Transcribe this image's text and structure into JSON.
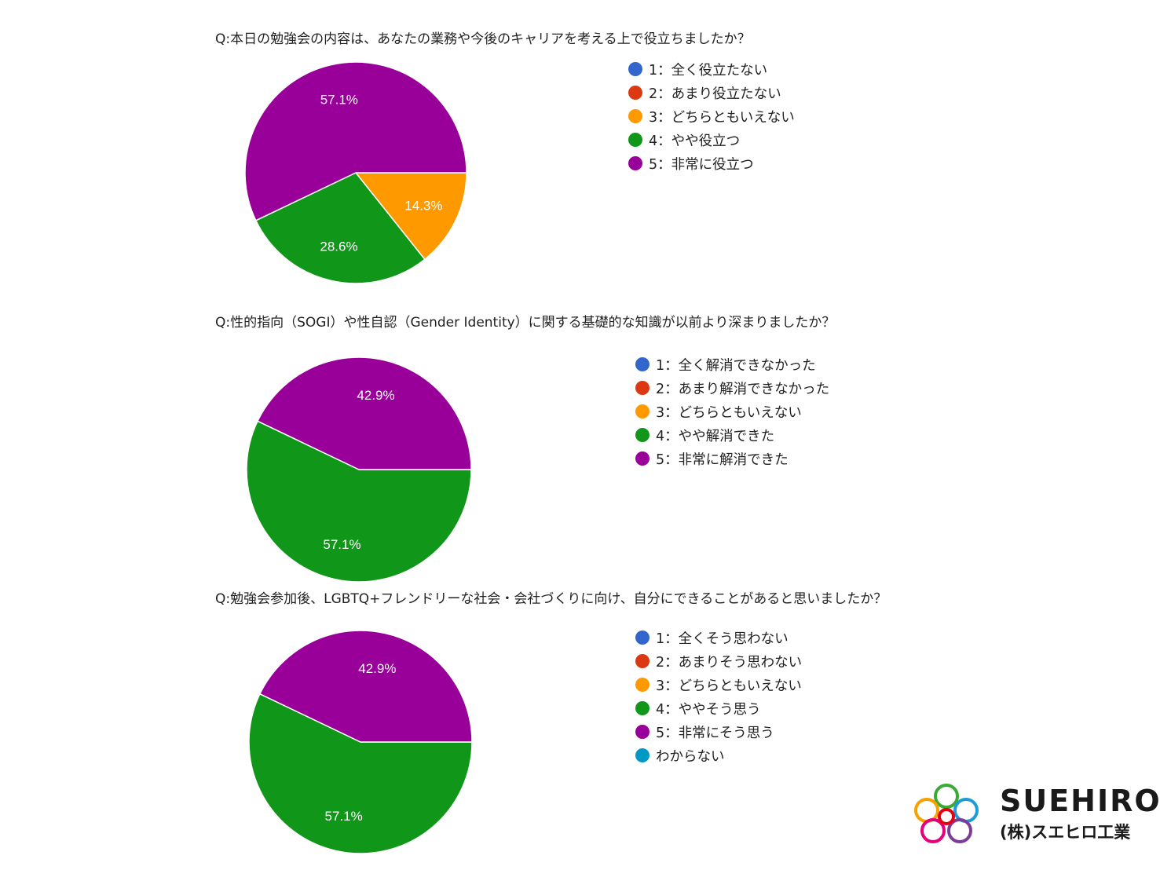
{
  "colors": {
    "opt1": "#3366cc",
    "opt2": "#dc3912",
    "opt3": "#ff9900",
    "opt4": "#109618",
    "opt5": "#990099",
    "opt6": "#0099c6"
  },
  "chart_data": [
    {
      "type": "pie",
      "title": "Q:本日の勉強会の内容は、あなたの業務や今後のキャリアを考える上で役立ちましたか？",
      "categories": [
        "1：全く役立たない",
        "2：あまり役立たない",
        "3：どちらともいえない",
        "4：やや役立つ",
        "5：非常に役立つ"
      ],
      "values": [
        0,
        0,
        14.3,
        28.6,
        57.1
      ],
      "labels": [
        "",
        "",
        "14.3%",
        "28.6%",
        "57.1%"
      ],
      "legend": "right"
    },
    {
      "type": "pie",
      "title": "Q:性的指向（SOGI）や性自認（Gender Identity）に関する基礎的な知識が以前より深まりましたか？",
      "categories": [
        "1：全く解消できなかった",
        "2：あまり解消できなかった",
        "3：どちらともいえない",
        "4：やや解消できた",
        "5：非常に解消できた"
      ],
      "values": [
        0,
        0,
        0,
        57.1,
        42.9
      ],
      "labels": [
        "",
        "",
        "",
        "57.1%",
        "42.9%"
      ],
      "legend": "right"
    },
    {
      "type": "pie",
      "title": "Q:勉強会参加後、LGBTQ+フレンドリーな社会・会社づくりに向け、自分にできることがあると思いましたか？",
      "categories": [
        "1：全くそう思わない",
        "2：あまりそう思わない",
        "3：どちらともいえない",
        "4：ややそう思う",
        "5：非常にそう思う",
        "わからない"
      ],
      "values": [
        0,
        0,
        0,
        57.1,
        42.9,
        0
      ],
      "labels": [
        "",
        "",
        "",
        "57.1%",
        "42.9%",
        ""
      ],
      "legend": "right"
    }
  ],
  "logo": {
    "name": "SUEHIRO",
    "company": "(株)スエヒロ工業"
  }
}
